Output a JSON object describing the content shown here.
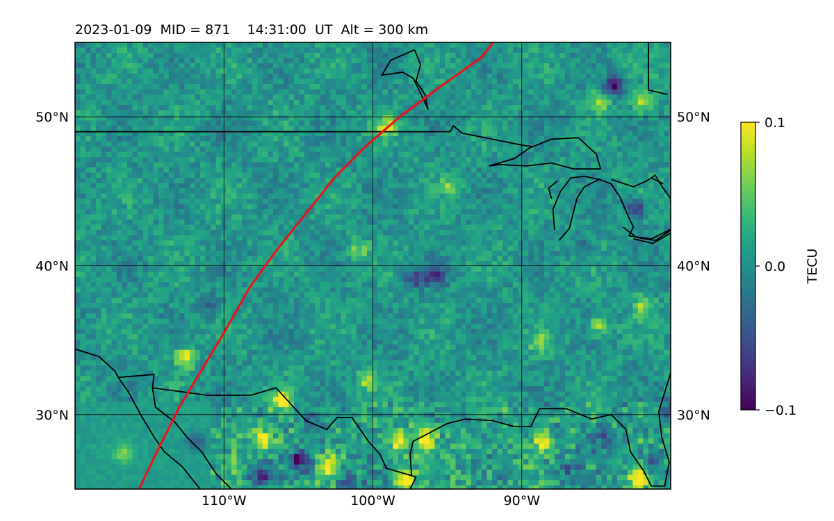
{
  "title": "2023-01-09  MID = 871    14:31:00  UT  Alt = 300 km",
  "map": {
    "lon_range": [
      -120,
      -80
    ],
    "lat_range": [
      25,
      55
    ],
    "lat_ticks": [
      {
        "value": 30,
        "label": "30°N"
      },
      {
        "value": 40,
        "label": "40°N"
      },
      {
        "value": 50,
        "label": "50°N"
      }
    ],
    "lon_ticks": [
      {
        "value": -110,
        "label": "110°W"
      },
      {
        "value": -100,
        "label": "100°W"
      },
      {
        "value": -90,
        "label": "90°W"
      }
    ],
    "gridlines": true,
    "track_color": "#e8141c",
    "track": [
      [
        -115.7,
        25
      ],
      [
        -114.5,
        27.5
      ],
      [
        -113,
        30.5
      ],
      [
        -111.5,
        33
      ],
      [
        -110,
        35.5
      ],
      [
        -108.3,
        38.5
      ],
      [
        -106.5,
        41
      ],
      [
        -104.5,
        43.5
      ],
      [
        -102.5,
        46
      ],
      [
        -100.5,
        48
      ],
      [
        -98.2,
        50
      ],
      [
        -95.5,
        52
      ],
      [
        -92.7,
        54
      ],
      [
        -91.9,
        55
      ]
    ],
    "borders": [
      [
        [
          -120,
          49
        ],
        [
          -94.8,
          49
        ],
        [
          -94.6,
          49.4
        ],
        [
          -94,
          48.9
        ],
        [
          -92,
          48.5
        ],
        [
          -90,
          48.1
        ],
        [
          -89.3,
          48
        ]
      ],
      [
        [
          -120,
          34.4
        ],
        [
          -118.4,
          33.9
        ],
        [
          -117.3,
          32.9
        ],
        [
          -117.1,
          32.5
        ],
        [
          -114.7,
          32.7
        ],
        [
          -114.8,
          31.8
        ],
        [
          -111.1,
          31.3
        ],
        [
          -108.2,
          31.3
        ],
        [
          -106.5,
          31.8
        ],
        [
          -104.5,
          29.6
        ],
        [
          -103.1,
          29
        ],
        [
          -102.4,
          29.8
        ],
        [
          -101.4,
          29.8
        ],
        [
          -100.3,
          28.2
        ],
        [
          -99.5,
          27.3
        ],
        [
          -99.1,
          26.4
        ],
        [
          -97.4,
          25.9
        ],
        [
          -97.1,
          25.8
        ]
      ],
      [
        [
          -117.1,
          32.5
        ],
        [
          -116.4,
          31.5
        ],
        [
          -115.6,
          30
        ],
        [
          -114.7,
          28.5
        ],
        [
          -114,
          27.5
        ],
        [
          -112.8,
          26.5
        ],
        [
          -112,
          25.5
        ],
        [
          -111.6,
          25
        ]
      ],
      [
        [
          -114.8,
          31.8
        ],
        [
          -114.6,
          30.5
        ],
        [
          -113.3,
          29.5
        ],
        [
          -112.5,
          28.5
        ],
        [
          -111.5,
          27.5
        ],
        [
          -110.5,
          26
        ],
        [
          -109.5,
          25
        ]
      ],
      [
        [
          -97.4,
          25.9
        ],
        [
          -97.5,
          27.3
        ],
        [
          -97.3,
          28.2
        ],
        [
          -95,
          29.4
        ],
        [
          -93.8,
          29.7
        ],
        [
          -92,
          29.6
        ],
        [
          -90.5,
          29.2
        ],
        [
          -89.4,
          29.2
        ],
        [
          -88.8,
          30.4
        ],
        [
          -87,
          30.4
        ],
        [
          -85.3,
          29.7
        ],
        [
          -84,
          30
        ],
        [
          -83,
          29
        ],
        [
          -82.7,
          27.5
        ],
        [
          -81.8,
          26.2
        ],
        [
          -81.3,
          25.2
        ],
        [
          -80.4,
          25.2
        ],
        [
          -80.1,
          26.8
        ],
        [
          -80.6,
          28.5
        ],
        [
          -80.8,
          30.2
        ],
        [
          -80,
          32.8
        ]
      ],
      [
        [
          -97.1,
          25.8
        ],
        [
          -97.5,
          25
        ]
      ],
      [
        [
          -92.2,
          46.7
        ],
        [
          -90.5,
          47.2
        ],
        [
          -89.5,
          47.9
        ],
        [
          -88,
          48.5
        ],
        [
          -86.2,
          48.6
        ],
        [
          -85,
          47.5
        ],
        [
          -84.7,
          46.5
        ],
        [
          -86.5,
          46.5
        ],
        [
          -88,
          46.9
        ],
        [
          -89.7,
          46.7
        ],
        [
          -91.5,
          46.8
        ],
        [
          -92.2,
          46.7
        ]
      ],
      [
        [
          -87.5,
          41.7
        ],
        [
          -86.8,
          42.5
        ],
        [
          -86.3,
          44.5
        ],
        [
          -85.8,
          45.3
        ],
        [
          -84.8,
          45.8
        ],
        [
          -84,
          45.5
        ],
        [
          -83.4,
          44.6
        ],
        [
          -82.8,
          43.2
        ],
        [
          -82.5,
          42.6
        ],
        [
          -82.8,
          42
        ],
        [
          -81.3,
          41.8
        ],
        [
          -79.5,
          42.7
        ]
      ],
      [
        [
          -87.8,
          42.4
        ],
        [
          -87.9,
          43.8
        ],
        [
          -87.4,
          45
        ],
        [
          -86.7,
          45.9
        ],
        [
          -85.8,
          46
        ],
        [
          -84.8,
          45.8
        ]
      ],
      [
        [
          -88,
          44.5
        ],
        [
          -88.2,
          45.2
        ],
        [
          -87.6,
          45.7
        ]
      ],
      [
        [
          -84,
          45.8
        ],
        [
          -82.5,
          45.3
        ],
        [
          -81.6,
          45.7
        ],
        [
          -81,
          46.1
        ]
      ],
      [
        [
          -81,
          46
        ],
        [
          -80.5,
          45.2
        ],
        [
          -80,
          44.5
        ]
      ],
      [
        [
          -82.5,
          41.8
        ],
        [
          -81.2,
          41.5
        ],
        [
          -79.8,
          42.3
        ],
        [
          -79,
          42.8
        ]
      ],
      [
        [
          -83.2,
          42.6
        ],
        [
          -82.3,
          41.9
        ],
        [
          -81,
          41.7
        ],
        [
          -80,
          42.4
        ]
      ],
      [
        [
          -81.3,
          45.9
        ],
        [
          -80.5,
          45.5
        ]
      ],
      [
        [
          -97.2,
          54.5
        ],
        [
          -96.8,
          53.5
        ],
        [
          -97.1,
          52.4
        ],
        [
          -96.5,
          51.5
        ],
        [
          -96.3,
          50.5
        ],
        [
          -96.8,
          51.6
        ],
        [
          -97.3,
          52.6
        ],
        [
          -98,
          53
        ],
        [
          -99.4,
          52.8
        ],
        [
          -98.8,
          53.8
        ],
        [
          -97.2,
          54.5
        ]
      ],
      [
        [
          -81.5,
          55
        ],
        [
          -81.5,
          51.8
        ],
        [
          -80.2,
          51.5
        ]
      ]
    ]
  },
  "colorbar": {
    "label": "TECU",
    "min": -0.1,
    "max": 0.1,
    "ticks": [
      {
        "value": 0.1,
        "label": "0.1"
      },
      {
        "value": 0.0,
        "label": "0.0"
      },
      {
        "value": -0.1,
        "label": "−0.1"
      }
    ],
    "colormap": [
      "#440154",
      "#482475",
      "#414487",
      "#355f8d",
      "#2a788e",
      "#21918c",
      "#22a884",
      "#44bf70",
      "#7ad151",
      "#bddf26",
      "#fde725"
    ]
  },
  "anomalies": [
    {
      "lon": -84,
      "lat": 52.3,
      "v": -0.09
    },
    {
      "lon": -82,
      "lat": 51.2,
      "v": 0.085
    },
    {
      "lon": -85,
      "lat": 51.2,
      "v": 0.06
    },
    {
      "lon": -99.3,
      "lat": 49.5,
      "v": 0.07
    },
    {
      "lon": -101.2,
      "lat": 41.2,
      "v": 0.05
    },
    {
      "lon": -96,
      "lat": 39.5,
      "v": -0.08
    },
    {
      "lon": -97.4,
      "lat": 39.3,
      "v": -0.06
    },
    {
      "lon": -82.5,
      "lat": 44,
      "v": -0.07
    },
    {
      "lon": -82,
      "lat": 37.5,
      "v": 0.06
    },
    {
      "lon": -85,
      "lat": 36.2,
      "v": 0.065
    },
    {
      "lon": -89,
      "lat": 35,
      "v": 0.05
    },
    {
      "lon": -112.8,
      "lat": 34,
      "v": 0.1
    },
    {
      "lon": -106.3,
      "lat": 31.2,
      "v": 0.09
    },
    {
      "lon": -100.5,
      "lat": 32.4,
      "v": 0.06
    },
    {
      "lon": -98.5,
      "lat": 28.4,
      "v": 0.1
    },
    {
      "lon": -96.6,
      "lat": 28.6,
      "v": 0.09
    },
    {
      "lon": -88.7,
      "lat": 28.5,
      "v": 0.08
    },
    {
      "lon": -107.4,
      "lat": 28.5,
      "v": 0.09
    },
    {
      "lon": -105,
      "lat": 27.1,
      "v": -0.1
    },
    {
      "lon": -103.2,
      "lat": 26.5,
      "v": 0.07
    },
    {
      "lon": -101.8,
      "lat": 25.6,
      "v": -0.07
    },
    {
      "lon": -107.8,
      "lat": 26.1,
      "v": -0.08
    },
    {
      "lon": -98,
      "lat": 25.8,
      "v": 0.1
    },
    {
      "lon": -84.6,
      "lat": 28.6,
      "v": -0.06
    },
    {
      "lon": -81.5,
      "lat": 27.1,
      "v": -0.06
    },
    {
      "lon": -82.4,
      "lat": 25.8,
      "v": 0.09
    },
    {
      "lon": -87,
      "lat": 26.5,
      "v": -0.05
    },
    {
      "lon": -104.5,
      "lat": 29.8,
      "v": -0.05
    },
    {
      "lon": -112,
      "lat": 28.3,
      "v": -0.05
    },
    {
      "lon": -117,
      "lat": 27.6,
      "v": 0.05
    },
    {
      "lon": -80.2,
      "lat": 30.5,
      "v": -0.07
    },
    {
      "lon": -86,
      "lat": 41.5,
      "v": -0.05
    },
    {
      "lon": -111,
      "lat": 37.5,
      "v": -0.04
    },
    {
      "lon": -95,
      "lat": 45.5,
      "v": 0.05
    }
  ]
}
